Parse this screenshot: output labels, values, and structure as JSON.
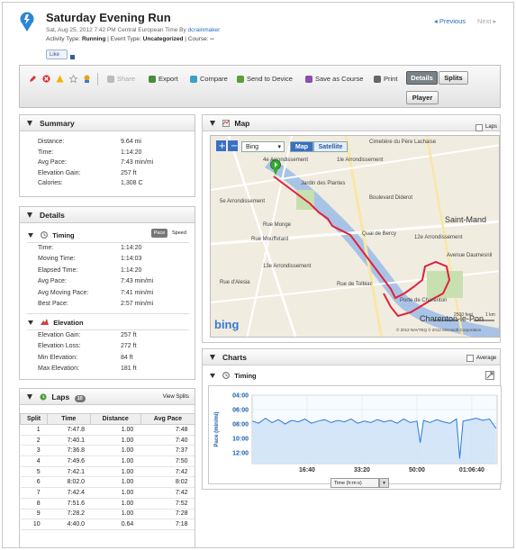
{
  "header": {
    "title": "Saturday Evening Run",
    "date_line": "Sat, Aug 25, 2012 7:42 PM Central European Time By",
    "author": "dcrainmaker",
    "activity_type_label": "Activity Type:",
    "activity_type": "Running",
    "event_type_label": "| Event Type:",
    "event_type": "Uncategorized",
    "course_label": "| Course:",
    "course": "--",
    "like_label": "Like",
    "prev_label": "◂ Previous",
    "next_label": "Next ▸"
  },
  "toolbar": {
    "share": "Share",
    "export": "Export",
    "compare": "Compare",
    "send": "Send to Device",
    "save_course": "Save as Course",
    "print": "Print",
    "details": "Details",
    "splits": "Splits",
    "player": "Player"
  },
  "summary": {
    "title": "Summary",
    "rows": [
      {
        "label": "Distance:",
        "value": "9.64 mi"
      },
      {
        "label": "Time:",
        "value": "1:14:20"
      },
      {
        "label": "Avg Pace:",
        "value": "7:43 min/mi"
      },
      {
        "label": "Elevation Gain:",
        "value": "257 ft"
      },
      {
        "label": "Calories:",
        "value": "1,308 C"
      }
    ]
  },
  "details": {
    "title": "Details",
    "timing_title": "Timing",
    "pace_btn": "Pace",
    "speed_btn": "Speed",
    "timing_rows": [
      {
        "label": "Time:",
        "value": "1:14:20"
      },
      {
        "label": "Moving Time:",
        "value": "1:14:03"
      },
      {
        "label": "Elapsed Time:",
        "value": "1:14:20"
      },
      {
        "label": "Avg Pace:",
        "value": "7:43 min/mi"
      },
      {
        "label": "Avg Moving Pace:",
        "value": "7:41 min/mi"
      },
      {
        "label": "Best Pace:",
        "value": "2:57 min/mi"
      }
    ],
    "elevation_title": "Elevation",
    "elevation_rows": [
      {
        "label": "Elevation Gain:",
        "value": "257 ft"
      },
      {
        "label": "Elevation Loss:",
        "value": "272 ft"
      },
      {
        "label": "Min Elevation:",
        "value": "84 ft"
      },
      {
        "label": "Max Elevation:",
        "value": "181 ft"
      }
    ]
  },
  "laps": {
    "title": "Laps",
    "count": "10",
    "view_splits": "View Splits",
    "columns": [
      "Split",
      "Time",
      "Distance",
      "Avg Pace"
    ],
    "rows": [
      [
        "1",
        "7:47.8",
        "1.00",
        "7:48"
      ],
      [
        "2",
        "7:40.1",
        "1.00",
        "7:40"
      ],
      [
        "3",
        "7:36.8",
        "1.00",
        "7:37"
      ],
      [
        "4",
        "7:49.6",
        "1.00",
        "7:50"
      ],
      [
        "5",
        "7:42.1",
        "1.00",
        "7:42"
      ],
      [
        "6",
        "8:02.0",
        "1.00",
        "8:02"
      ],
      [
        "7",
        "7:42.4",
        "1.00",
        "7:42"
      ],
      [
        "8",
        "7:51.6",
        "1.00",
        "7:52"
      ],
      [
        "9",
        "7:28.2",
        "1.00",
        "7:28"
      ],
      [
        "10",
        "4:40.0",
        "0.64",
        "7:18"
      ]
    ]
  },
  "map": {
    "title": "Map",
    "laps_label": "Laps",
    "provider": "Bing",
    "map_btn": "Map",
    "satellite_btn": "Satellite",
    "labels": [
      "4e Arrondissement",
      "1le Arrondissement",
      "5e Arrondissement",
      "Boulevard Diderot",
      "12e Arrondissement",
      "13e Arrondissement",
      "Saint-Mand",
      "Charenton-le-Pon",
      "Rue de Tolbiac",
      "Quai de Bercy",
      "Rue Mouffetard",
      "Rue d'Alesia",
      "Rue Monge",
      "Cimetière du Père Lachaise",
      "Porte de Charenton",
      "Avenue Daumesnil",
      "Jardin des Plantes"
    ],
    "scale_mi": "2500 feet",
    "scale_km": "1 km",
    "copyright": "© 2012 NAVTEQ  © 2012 Microsoft Corporation",
    "brand": "bing"
  },
  "charts": {
    "title": "Charts",
    "average_label": "Average",
    "timing_title": "Timing",
    "xaxis_select": "Time (h:m:s)",
    "ylabel": "Pace (min/mi)"
  },
  "chart_data": {
    "type": "area",
    "title": "Timing",
    "xlabel": "Time (h:m:s)",
    "ylabel": "Pace (min/mi)",
    "y_tick_labels": [
      "04:00",
      "06:00",
      "08:00",
      "10:00",
      "12:00"
    ],
    "x_tick_labels": [
      "16:40",
      "33:20",
      "50:00",
      "01:06:40"
    ],
    "xlim_seconds": [
      0,
      4460
    ],
    "ylim_minutes": [
      4,
      13.5
    ],
    "y_inverted": true,
    "series": [
      {
        "name": "Pace",
        "color": "#2a7bd4",
        "x": [
          0,
          120,
          240,
          360,
          480,
          600,
          720,
          840,
          960,
          1080,
          1200,
          1320,
          1440,
          1560,
          1680,
          1800,
          1920,
          2040,
          2160,
          2280,
          2400,
          2520,
          2640,
          2760,
          2880,
          3000,
          3060,
          3120,
          3240,
          3360,
          3480,
          3600,
          3720,
          3780,
          3840,
          3960,
          4080,
          4200,
          4320,
          4440
        ],
        "y": [
          7.6,
          7.9,
          7.2,
          7.8,
          7.4,
          8.0,
          7.5,
          7.7,
          7.3,
          7.9,
          7.6,
          7.4,
          7.8,
          7.5,
          7.7,
          7.3,
          7.9,
          7.6,
          7.8,
          7.4,
          7.7,
          7.5,
          7.9,
          7.3,
          7.8,
          7.6,
          10.6,
          7.5,
          7.8,
          7.4,
          7.7,
          7.9,
          7.3,
          12.8,
          7.6,
          7.4,
          7.2,
          7.5,
          7.3,
          8.6
        ]
      }
    ],
    "grid": true
  },
  "colors": {
    "accent": "#2a6ebb",
    "route": "#e0213a",
    "chart_line": "#2a7bd4",
    "chart_fill": "#cfe2f7"
  }
}
